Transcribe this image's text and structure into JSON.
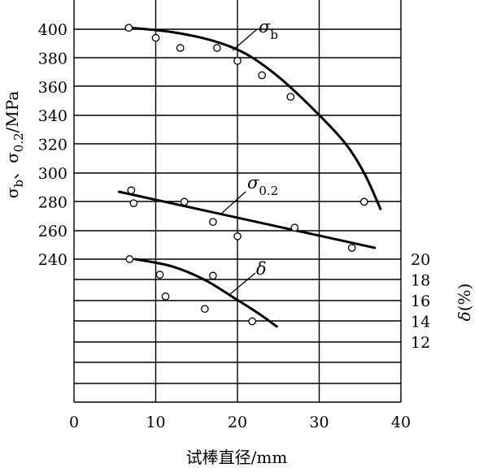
{
  "chart_data": {
    "type": "scatter",
    "xlabel": "试棒直径/mm",
    "ylabel_left": {
      "main": "σ",
      "sub1": "b",
      "mid": "、σ",
      "sub2": "0.2",
      "unit": "/MPa"
    },
    "ylabel_right": {
      "main": "δ",
      "unit": "(%)"
    },
    "xlim": [
      0,
      40
    ],
    "ylim_left": [
      140,
      410
    ],
    "ylim_right": [
      0,
      28
    ],
    "xticks": [
      "0",
      "10",
      "20",
      "30",
      "40"
    ],
    "yticks_left": [
      "240",
      "260",
      "280",
      "300",
      "320",
      "340",
      "360",
      "380",
      "400"
    ],
    "yticks_right": [
      "12",
      "14",
      "16",
      "18",
      "20"
    ],
    "grid": true,
    "series": [
      {
        "name": "σb",
        "label_main": "σ",
        "label_sub": "b",
        "axis": "left",
        "points": [
          [
            6.7,
            401
          ],
          [
            10,
            394
          ],
          [
            13,
            387
          ],
          [
            17.5,
            387
          ],
          [
            20,
            378
          ],
          [
            23,
            368
          ],
          [
            26.5,
            353
          ],
          [
            35.5,
            280
          ]
        ],
        "curve": [
          [
            7,
            401
          ],
          [
            12,
            398
          ],
          [
            17,
            392
          ],
          [
            21,
            383
          ],
          [
            25,
            367
          ],
          [
            29,
            346
          ],
          [
            33,
            322
          ],
          [
            35.5,
            300
          ],
          [
            37.5,
            275
          ]
        ]
      },
      {
        "name": "σ0.2",
        "label_main": "σ",
        "label_sub": "0.2",
        "axis": "left",
        "points": [
          [
            7,
            288
          ],
          [
            7.3,
            279
          ],
          [
            13.5,
            280
          ],
          [
            17,
            266
          ],
          [
            20,
            256
          ],
          [
            27,
            262
          ],
          [
            34,
            248
          ]
        ],
        "curve": [
          [
            5.5,
            287
          ],
          [
            36.8,
            248
          ]
        ]
      },
      {
        "name": "δ",
        "label_main": "δ",
        "label_sub": "",
        "axis": "right",
        "points": [
          [
            6.8,
            20
          ],
          [
            10.5,
            18.5
          ],
          [
            11.2,
            16.4
          ],
          [
            16,
            15.2
          ],
          [
            17,
            18.4
          ],
          [
            21.8,
            14
          ]
        ],
        "curve": [
          [
            7.5,
            20
          ],
          [
            12,
            19.3
          ],
          [
            16,
            18
          ],
          [
            19.5,
            16.3
          ],
          [
            22.5,
            14.8
          ],
          [
            24.8,
            13.5
          ]
        ]
      }
    ]
  }
}
